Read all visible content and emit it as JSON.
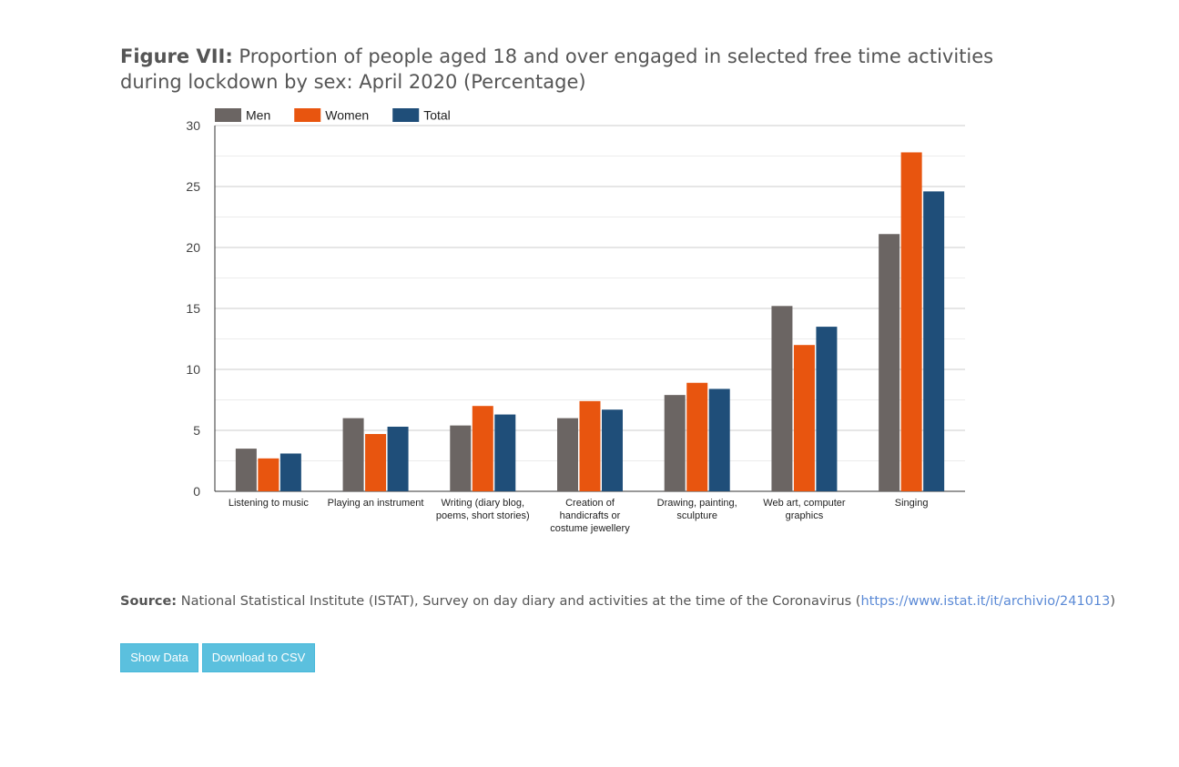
{
  "figure": {
    "label": "Figure VII:",
    "title": "Proportion of people aged 18 and over engaged in selected free time activities during lockdown by sex: April 2020 (Percentage)"
  },
  "source": {
    "label": "Source:",
    "text": "National Statistical Institute (ISTAT), Survey on day diary and activities at the time of the Coronavirus (",
    "link": "https://www.istat.it/it/archivio/241013",
    "after": ")"
  },
  "buttons": {
    "show_data": "Show Data",
    "download_csv": "Download to CSV"
  },
  "colors": {
    "men": "#6b6563",
    "women": "#e8550f",
    "total": "#1f4e79",
    "button": "#5bc0de"
  },
  "chart_data": {
    "type": "bar",
    "categories": [
      [
        "Listening to music"
      ],
      [
        "Playing an instrument"
      ],
      [
        "Writing (diary blog,",
        "poems, short stories)"
      ],
      [
        "Creation of",
        "handicrafts or",
        "costume jewellery"
      ],
      [
        "Drawing, painting,",
        "sculpture"
      ],
      [
        "Web art, computer",
        "graphics"
      ],
      [
        "Singing"
      ]
    ],
    "series": [
      {
        "name": "Men",
        "color": "#6b6563",
        "values": [
          3.5,
          6.0,
          5.4,
          6.0,
          7.9,
          15.2,
          21.1
        ]
      },
      {
        "name": "Women",
        "color": "#e8550f",
        "values": [
          2.7,
          4.7,
          7.0,
          7.4,
          8.9,
          12.0,
          27.8
        ]
      },
      {
        "name": "Total",
        "color": "#1f4e79",
        "values": [
          3.1,
          5.3,
          6.3,
          6.7,
          8.4,
          13.5,
          24.6
        ]
      }
    ],
    "ylim": [
      0,
      30
    ],
    "yticks": [
      0,
      5,
      10,
      15,
      20,
      25,
      30
    ],
    "grid": true,
    "legend": "top-left"
  }
}
